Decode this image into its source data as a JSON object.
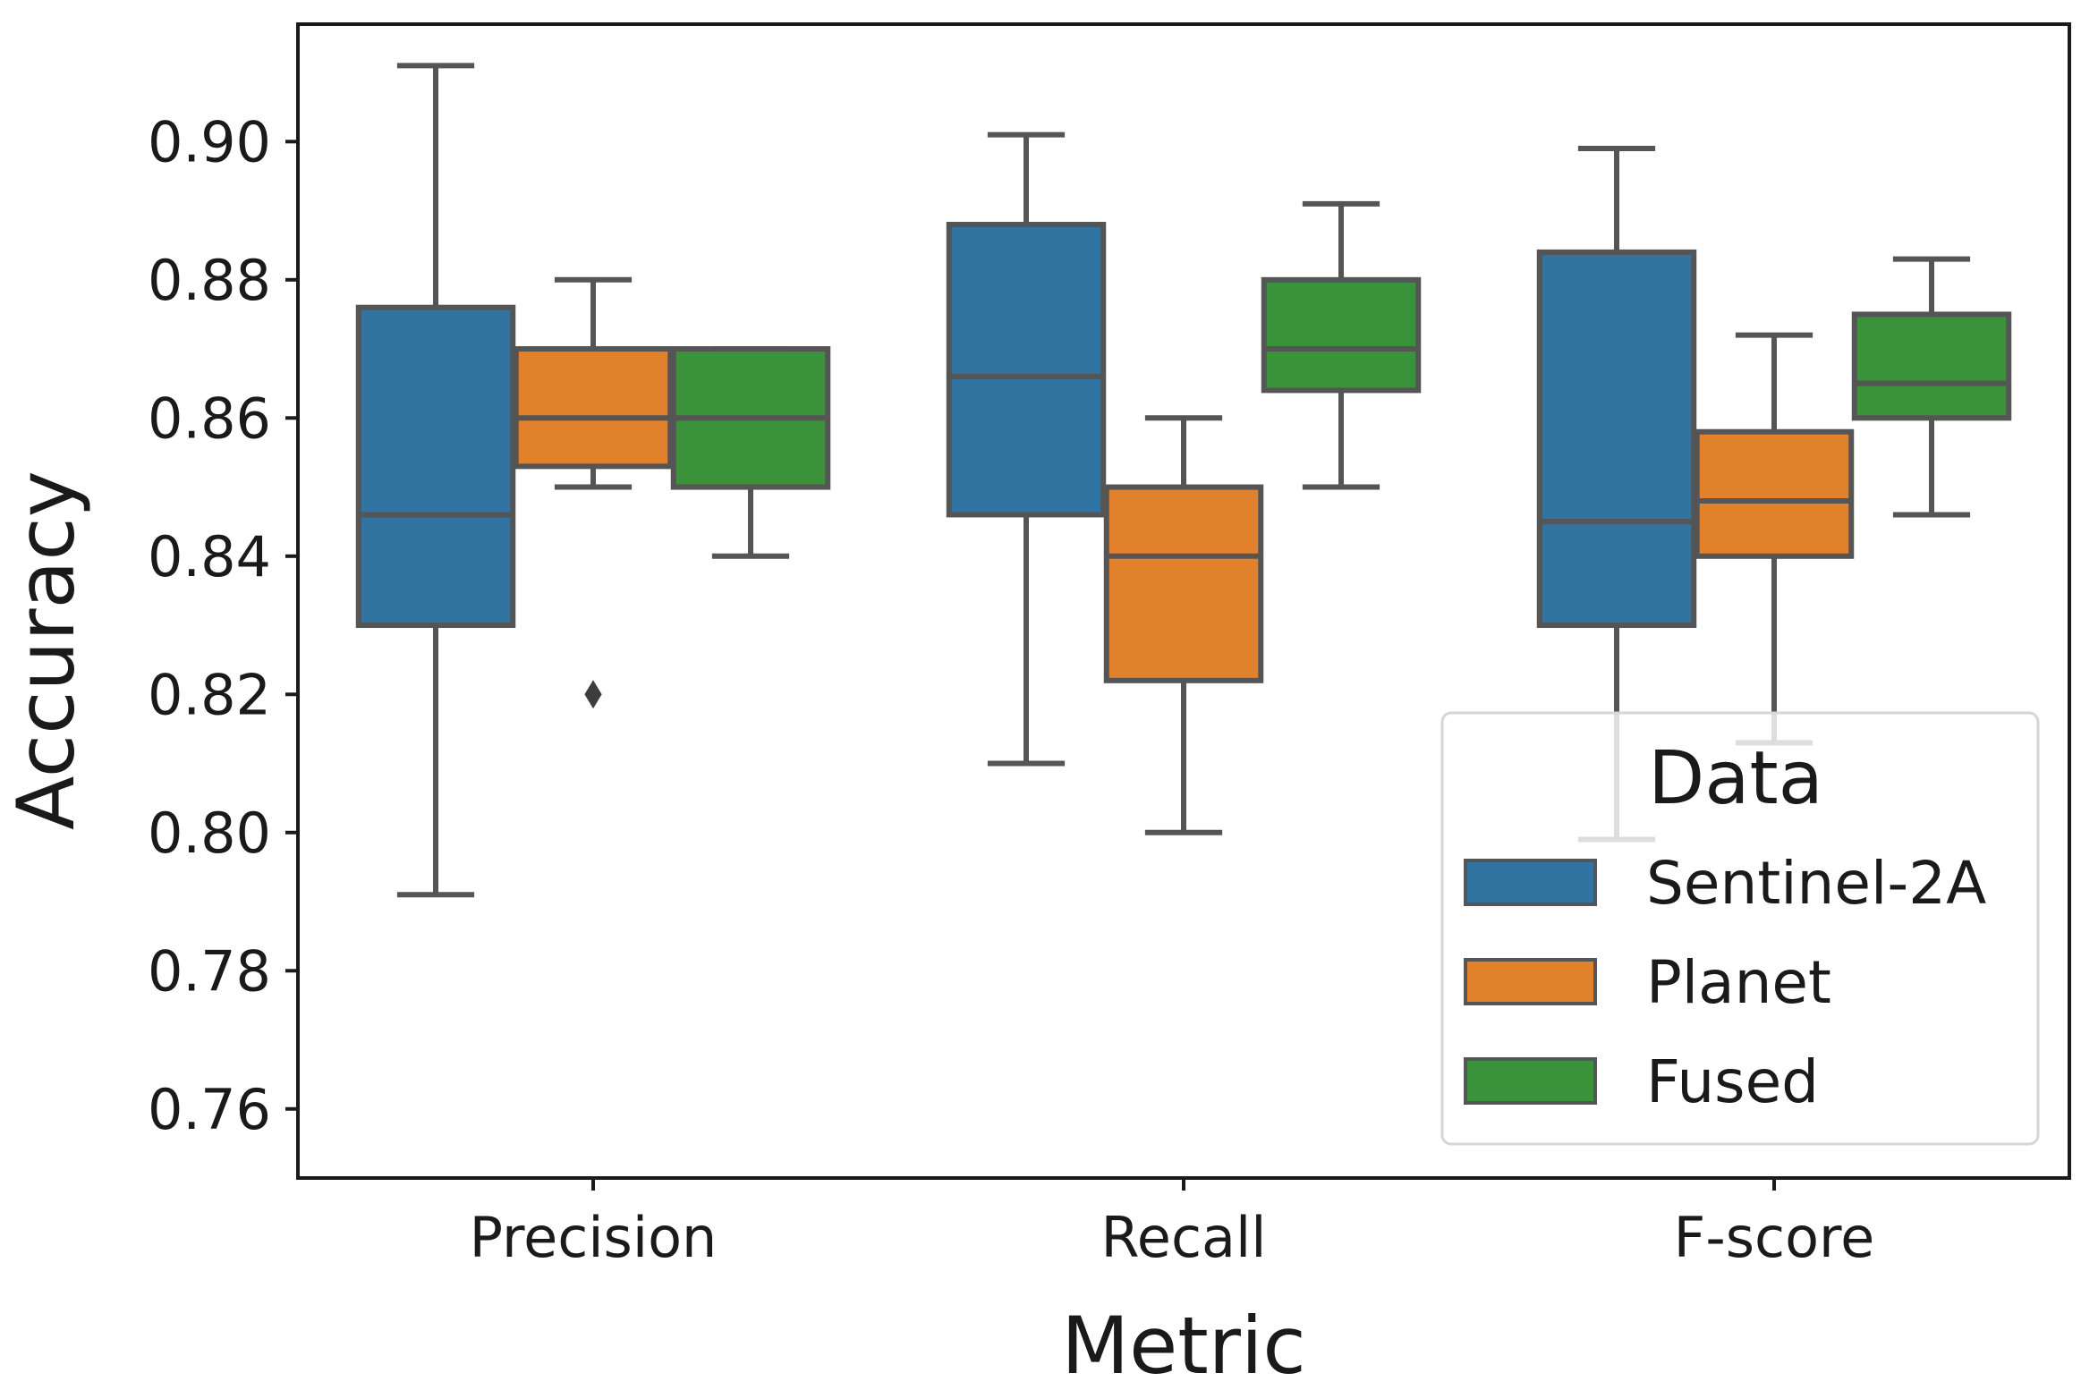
{
  "chart_data": {
    "type": "box",
    "title": "",
    "xlabel": "Metric",
    "ylabel": "Accuracy",
    "ylim": [
      0.75,
      0.917
    ],
    "yticks": [
      0.76,
      0.78,
      0.8,
      0.82,
      0.84,
      0.86,
      0.88,
      0.9
    ],
    "ytick_labels": [
      "0.76",
      "0.78",
      "0.80",
      "0.82",
      "0.84",
      "0.86",
      "0.88",
      "0.90"
    ],
    "categories": [
      "Precision",
      "Recall",
      "F-score"
    ],
    "legend": {
      "title": "Data",
      "position": "lower-right"
    },
    "grid": false,
    "series": [
      {
        "name": "Sentinel-2A",
        "color": "#3274a1",
        "boxes": [
          {
            "whislo": 0.791,
            "q1": 0.83,
            "med": 0.846,
            "q3": 0.876,
            "whishi": 0.911,
            "fliers": []
          },
          {
            "whislo": 0.81,
            "q1": 0.846,
            "med": 0.866,
            "q3": 0.888,
            "whishi": 0.901,
            "fliers": []
          },
          {
            "whislo": 0.799,
            "q1": 0.83,
            "med": 0.845,
            "q3": 0.884,
            "whishi": 0.899,
            "fliers": []
          }
        ]
      },
      {
        "name": "Planet",
        "color": "#e1812c",
        "boxes": [
          {
            "whislo": 0.85,
            "q1": 0.853,
            "med": 0.86,
            "q3": 0.87,
            "whishi": 0.88,
            "fliers": [
              0.82
            ]
          },
          {
            "whislo": 0.8,
            "q1": 0.822,
            "med": 0.84,
            "q3": 0.85,
            "whishi": 0.86,
            "fliers": []
          },
          {
            "whislo": 0.813,
            "q1": 0.84,
            "med": 0.848,
            "q3": 0.858,
            "whishi": 0.872,
            "fliers": []
          }
        ]
      },
      {
        "name": "Fused",
        "color": "#3a923a",
        "boxes": [
          {
            "whislo": 0.84,
            "q1": 0.85,
            "med": 0.86,
            "q3": 0.87,
            "whishi": 0.87,
            "fliers": []
          },
          {
            "whislo": 0.85,
            "q1": 0.864,
            "med": 0.87,
            "q3": 0.88,
            "whishi": 0.891,
            "fliers": []
          },
          {
            "whislo": 0.846,
            "q1": 0.86,
            "med": 0.865,
            "q3": 0.875,
            "whishi": 0.883,
            "fliers": []
          }
        ]
      }
    ]
  }
}
